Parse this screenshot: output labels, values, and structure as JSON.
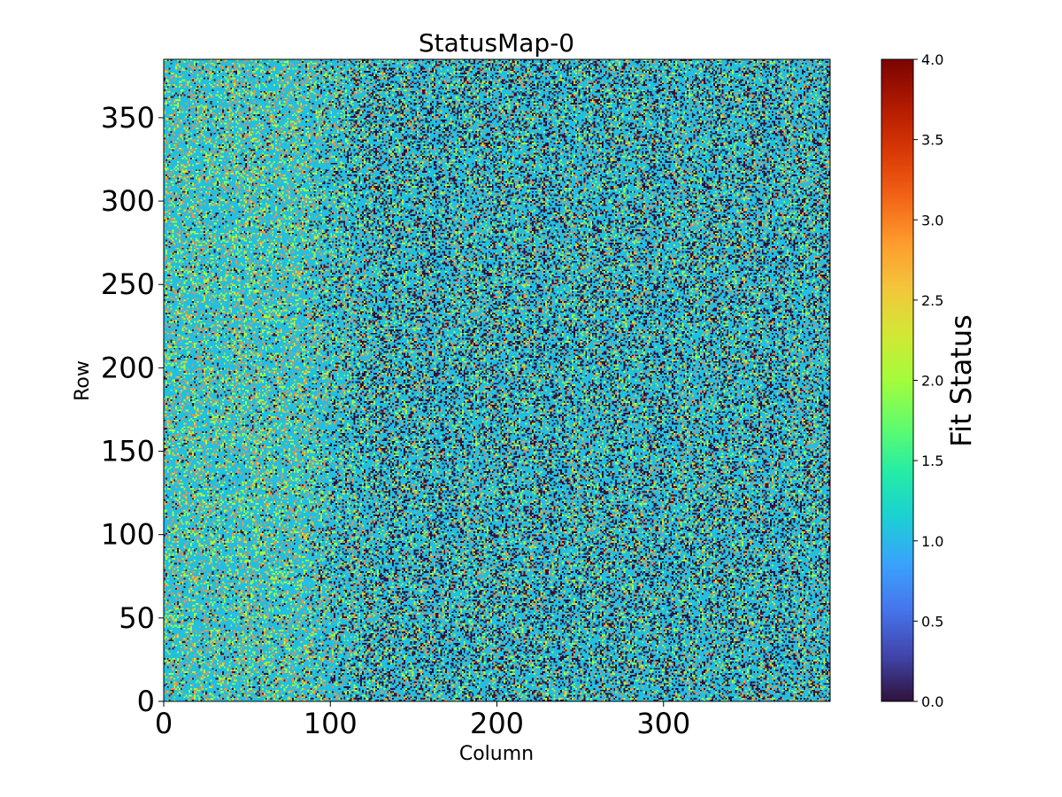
{
  "chart_data": {
    "type": "heatmap",
    "title": "StatusMap-0",
    "xlabel": "Column",
    "ylabel": "Row",
    "xlim": [
      0,
      400
    ],
    "ylim": [
      0,
      385
    ],
    "x_ticks": [
      0,
      100,
      200,
      300
    ],
    "y_ticks": [
      0,
      50,
      100,
      150,
      200,
      250,
      300,
      350
    ],
    "colorbar": {
      "label": "Fit Status",
      "range": [
        0.0,
        4.0
      ],
      "ticks": [
        0.0,
        0.5,
        1.0,
        1.5,
        2.0,
        2.5,
        3.0,
        3.5,
        4.0
      ],
      "tick_labels": [
        "0.0",
        "0.5",
        "1.0",
        "1.5",
        "2.0",
        "2.5",
        "3.0",
        "3.5",
        "4.0"
      ],
      "colormap": "turbo",
      "stops": [
        "#30123b",
        "#4145ab",
        "#4675ed",
        "#39a2fc",
        "#1bcfd4",
        "#24eca6",
        "#61fc6c",
        "#a4fc3b",
        "#d1e834",
        "#f3c63a",
        "#fe9b2d",
        "#f36315",
        "#d93806",
        "#b11901",
        "#7a0402"
      ]
    },
    "grid": false,
    "value_description": "Discrete fit status values (0,1,2,3,4); majority value 1.0; left region (columns < ~100) mostly 1 with scattered 2 and 3; right region denser with 0 values mixed with 1",
    "category_colors": {
      "0": "#30123b",
      "1": "#22bfe0",
      "2": "#a4fc3b",
      "3": "#f0904a",
      "4": "#7a0402"
    },
    "left_region": {
      "columns": [
        0,
        95
      ],
      "probabilities": {
        "0": 0.04,
        "1": 0.66,
        "2": 0.16,
        "3": 0.12,
        "4": 0.02
      }
    },
    "right_region": {
      "columns": [
        95,
        400
      ],
      "probabilities": {
        "0": 0.22,
        "1": 0.6,
        "2": 0.1,
        "3": 0.06,
        "4": 0.02
      }
    }
  }
}
